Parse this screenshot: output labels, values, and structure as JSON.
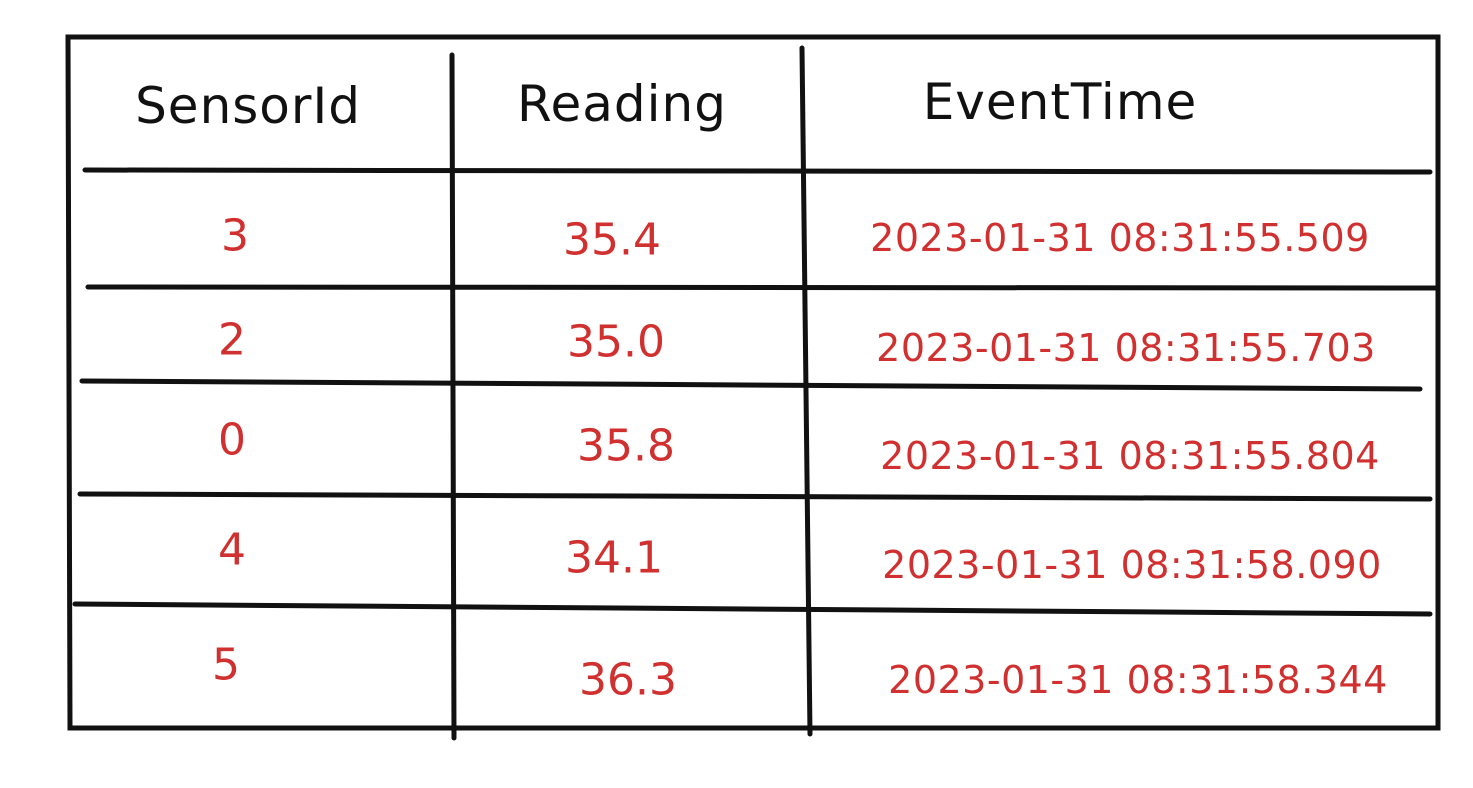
{
  "table": {
    "headers": [
      "SensorId",
      "Reading",
      "EventTime"
    ],
    "rows": [
      {
        "sensor_id": "3",
        "reading": "35.4",
        "event_time": "2023-01-31 08:31:55.509"
      },
      {
        "sensor_id": "2",
        "reading": "35.0",
        "event_time": "2023-01-31 08:31:55.703"
      },
      {
        "sensor_id": "0",
        "reading": "35.8",
        "event_time": "2023-01-31 08:31:55.804"
      },
      {
        "sensor_id": "4",
        "reading": "34.1",
        "event_time": "2023-01-31 08:31:58.090"
      },
      {
        "sensor_id": "5",
        "reading": "36.3",
        "event_time": "2023-01-31 08:31:58.344"
      }
    ]
  },
  "colors": {
    "header_text": "#111111",
    "cell_text": "#d0302f",
    "border": "#111111"
  }
}
